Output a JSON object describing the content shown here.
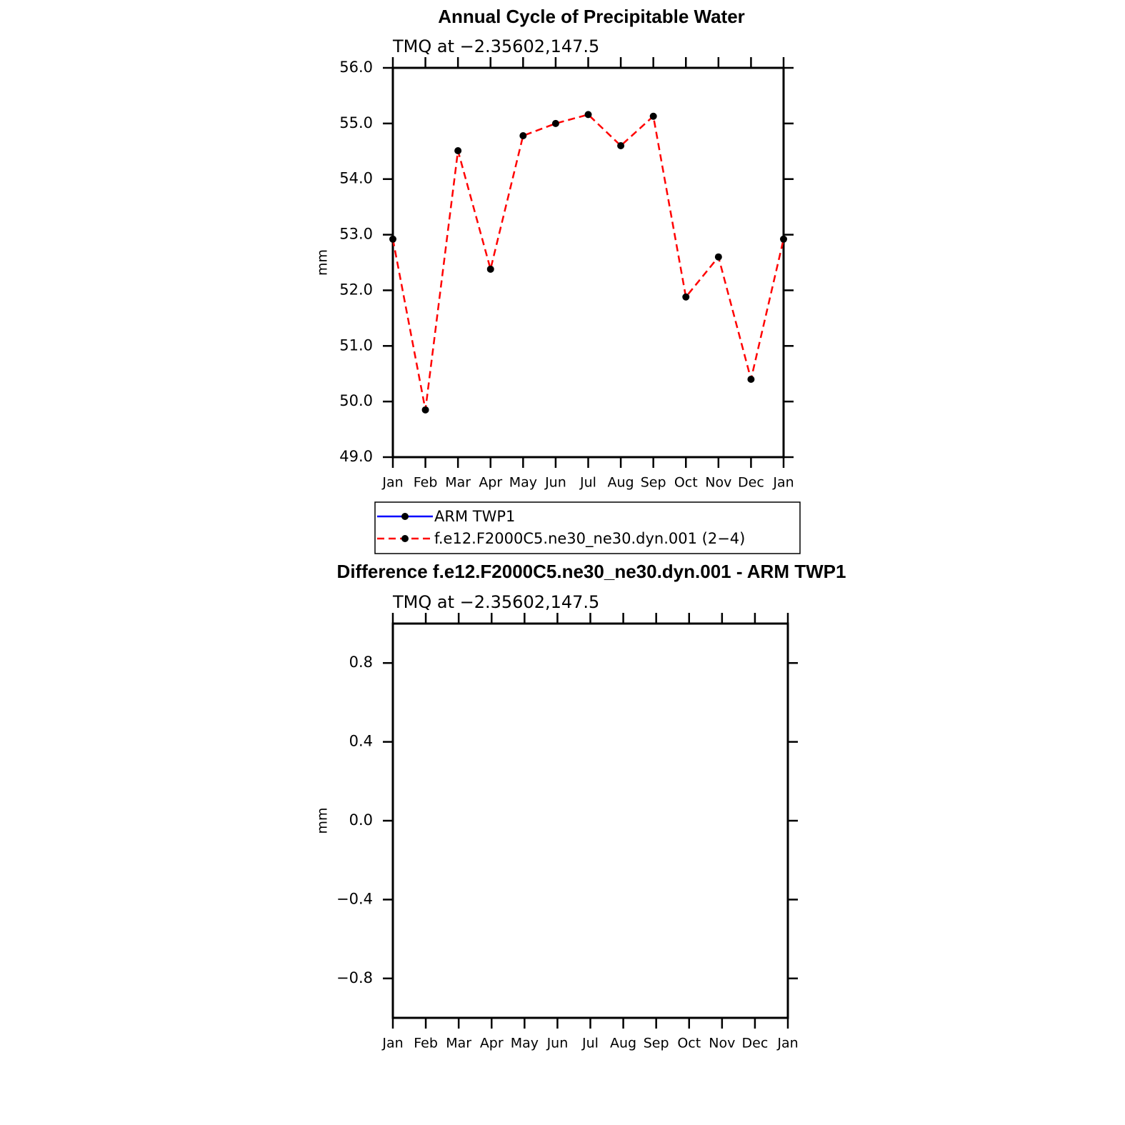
{
  "chart_data": [
    {
      "type": "line",
      "title": "Annual Cycle of Precipitable Water",
      "subtitle": "TMQ at −2.35602,147.5",
      "y_label": "mm",
      "categories": [
        "Jan",
        "Feb",
        "Mar",
        "Apr",
        "May",
        "Jun",
        "Jul",
        "Aug",
        "Sep",
        "Oct",
        "Nov",
        "Dec",
        "Jan"
      ],
      "ylim": [
        49,
        56
      ],
      "yticks": [
        {
          "value": 49,
          "label": "49.0"
        },
        {
          "value": 50,
          "label": "50.0"
        },
        {
          "value": 51,
          "label": "51.0"
        },
        {
          "value": 52,
          "label": "52.0"
        },
        {
          "value": 53,
          "label": "53.0"
        },
        {
          "value": 54,
          "label": "54.0"
        },
        {
          "value": 55,
          "label": "55.0"
        },
        {
          "value": 56,
          "label": "56.0"
        }
      ],
      "marker_color": "#000000",
      "legend": "below",
      "series": [
        {
          "name": "ARM  TWP1",
          "color": "#0000ff",
          "line_style": "solid",
          "values": [
            null,
            null,
            null,
            null,
            null,
            null,
            null,
            null,
            null,
            null,
            null,
            null,
            null
          ]
        },
        {
          "name": "f.e12.F2000C5.ne30_ne30.dyn.001 (2−4)",
          "color": "#ff0000",
          "line_style": "dashed",
          "values": [
            52.92,
            49.85,
            54.51,
            52.38,
            54.78,
            55.0,
            55.16,
            54.6,
            55.13,
            51.88,
            52.6,
            50.4,
            52.92
          ]
        }
      ]
    },
    {
      "type": "line",
      "title": "Difference f.e12.F2000C5.ne30_ne30.dyn.001 - ARM TWP1",
      "subtitle": "TMQ at −2.35602,147.5",
      "y_label": "mm",
      "categories": [
        "Jan",
        "Feb",
        "Mar",
        "Apr",
        "May",
        "Jun",
        "Jul",
        "Aug",
        "Sep",
        "Oct",
        "Nov",
        "Dec",
        "Jan"
      ],
      "ylim": [
        -1,
        1
      ],
      "yticks": [
        {
          "value": -0.8,
          "label": "−0.8"
        },
        {
          "value": -0.4,
          "label": "−0.4"
        },
        {
          "value": 0,
          "label": "0.0"
        },
        {
          "value": 0.4,
          "label": "0.4"
        },
        {
          "value": 0.8,
          "label": "0.8"
        }
      ],
      "series": []
    }
  ]
}
